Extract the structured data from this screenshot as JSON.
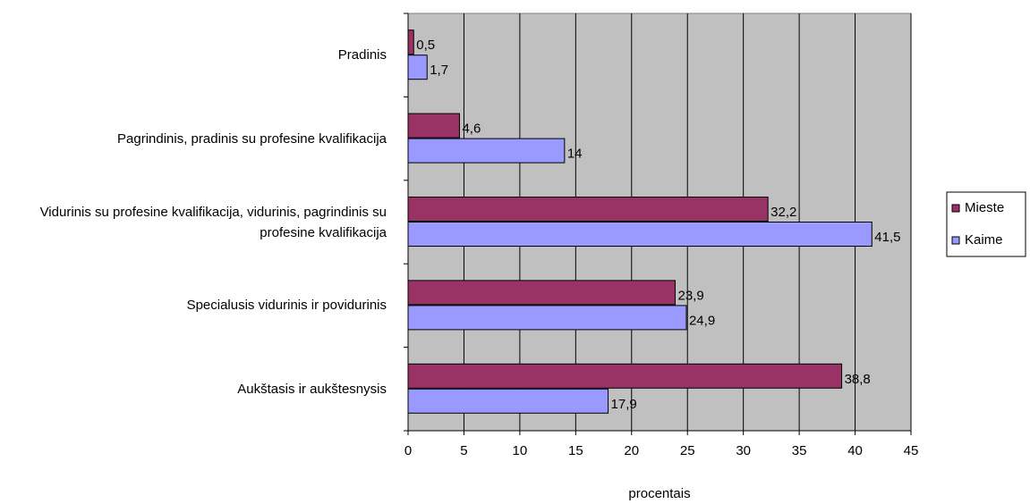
{
  "chart_data": {
    "type": "hbar",
    "categories": [
      "Pradinis",
      "Pagrindinis, pradinis su profesine kvalifikacija",
      "Vidurinis su profesine kvalifikacija, vidurinis, pagrindinis su profesine kvalifikacija",
      "Specialusis vidurinis ir povidurinis",
      "Aukštasis ir aukštesnysis"
    ],
    "series": [
      {
        "name": "Mieste",
        "color": "#993366",
        "values": [
          0.5,
          4.6,
          32.2,
          23.9,
          38.8
        ],
        "value_labels": [
          "0,5",
          "4,6",
          "32,2",
          "23,9",
          "38,8"
        ]
      },
      {
        "name": "Kaime",
        "color": "#9999ff",
        "values": [
          1.7,
          14,
          41.5,
          24.9,
          17.9
        ],
        "value_labels": [
          "1,7",
          "14",
          "41,5",
          "24,9",
          "17,9"
        ]
      }
    ],
    "xlim": [
      0,
      45
    ],
    "xticks": [
      0,
      5,
      10,
      15,
      20,
      25,
      30,
      35,
      40,
      45
    ],
    "xlabel": "procentais",
    "grid": true,
    "legend": "right",
    "background": "#c0c0c0"
  }
}
